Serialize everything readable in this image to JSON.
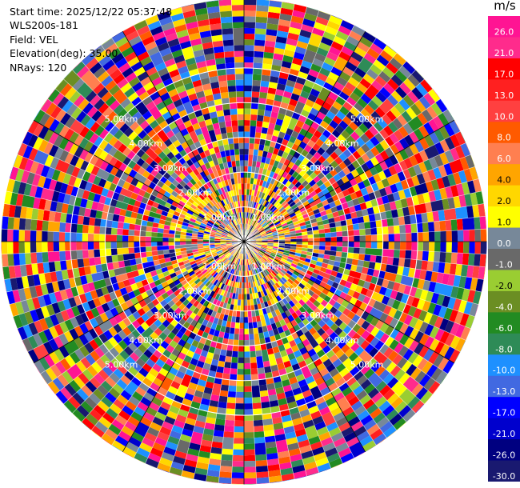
{
  "info": {
    "start_time": "Start time: 2025/12/22 05:37:48",
    "instrument": "WLS200s-181",
    "field": "Field: VEL",
    "elevation": "Elevation(deg): 35.00",
    "nrays": "NRays: 120"
  },
  "chart_data": {
    "type": "heatmap",
    "projection": "polar-ppi",
    "n_rays": 120,
    "range_rings_km": [
      1.0,
      2.0,
      3.0,
      4.0,
      5.0
    ],
    "ring_label_texts": [
      "1.00km",
      "2.00km",
      "3.00km",
      "4.00km",
      "5.00km"
    ],
    "max_range_km": 7.0,
    "azimuth_lines_deg": [
      0,
      30,
      60,
      90,
      120,
      150,
      180,
      210,
      240,
      270,
      300,
      330
    ],
    "values": "noisy radial velocity field, values spanning -30.0 to 26.0 m/s",
    "colorbar": {
      "unit": "m/s",
      "ticks": [
        "26.0",
        "21.0",
        "17.0",
        "13.0",
        "10.0",
        "8.0",
        "6.0",
        "4.0",
        "2.0",
        "1.0",
        "0.0",
        "-1.0",
        "-2.0",
        "-4.0",
        "-6.0",
        "-8.0",
        "-10.0",
        "-13.0",
        "-17.0",
        "-21.0",
        "-26.0",
        "-30.0"
      ],
      "colors": [
        "#ff1493",
        "#ff2b8c",
        "#ff0000",
        "#ff2020",
        "#ff4040",
        "#ff5a00",
        "#ff7f50",
        "#ffa500",
        "#ffd700",
        "#ffff00",
        "#778899",
        "#696969",
        "#9acd32",
        "#6b8e23",
        "#228b22",
        "#2e8b57",
        "#1e90ff",
        "#4169e1",
        "#0000ff",
        "#0000cd",
        "#000080",
        "#191970"
      ]
    }
  }
}
